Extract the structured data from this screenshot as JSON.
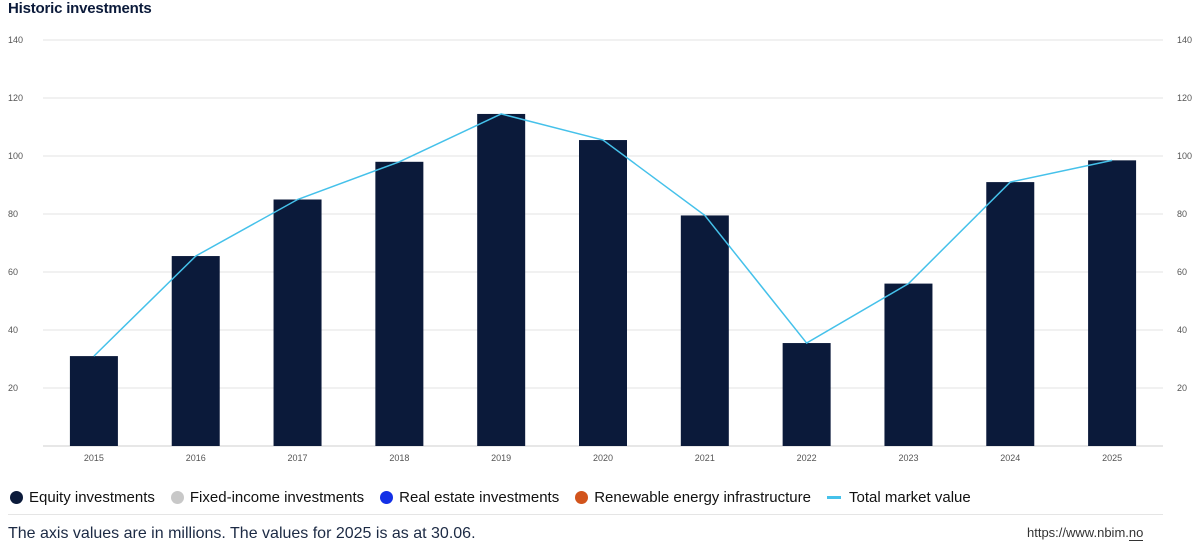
{
  "chart_data": {
    "type": "bar",
    "title": "Historic investments",
    "categories": [
      "2015",
      "2016",
      "2017",
      "2018",
      "2019",
      "2020",
      "2021",
      "2022",
      "2023",
      "2024",
      "2025"
    ],
    "series": [
      {
        "name": "Equity investments",
        "type": "bar",
        "color": "#0b1a3a",
        "values": [
          31,
          65.5,
          85,
          98,
          114.5,
          105.5,
          79.5,
          35.5,
          56,
          91,
          98.5
        ]
      },
      {
        "name": "Fixed-income investments",
        "type": "bar",
        "color": "#c8c8c8",
        "values": [
          0,
          0,
          0,
          0,
          0,
          0,
          0,
          0,
          0,
          0,
          0
        ]
      },
      {
        "name": "Real estate investments",
        "type": "bar",
        "color": "#1330e6",
        "values": [
          0,
          0,
          0,
          0,
          0,
          0,
          0,
          0,
          0,
          0,
          0
        ]
      },
      {
        "name": "Renewable energy infrastructure",
        "type": "bar",
        "color": "#d2541c",
        "values": [
          0,
          0,
          0,
          0,
          0,
          0,
          0,
          0,
          0,
          0,
          0
        ]
      },
      {
        "name": "Total market value",
        "type": "line",
        "color": "#45c1ea",
        "values": [
          31,
          65.5,
          85,
          98,
          114.5,
          105.5,
          79.5,
          35.5,
          56,
          91,
          98.5
        ]
      }
    ],
    "ylim": [
      0,
      140
    ],
    "yticks": [
      20,
      40,
      60,
      80,
      100,
      120,
      140
    ],
    "grid": true,
    "legend_position": "bottom-left"
  },
  "footnote": "The axis values are in millions. The values for 2025 is as at 30.06.",
  "source": {
    "prefix": "https://",
    "domain": "www.nbim.",
    "tld": "no"
  }
}
